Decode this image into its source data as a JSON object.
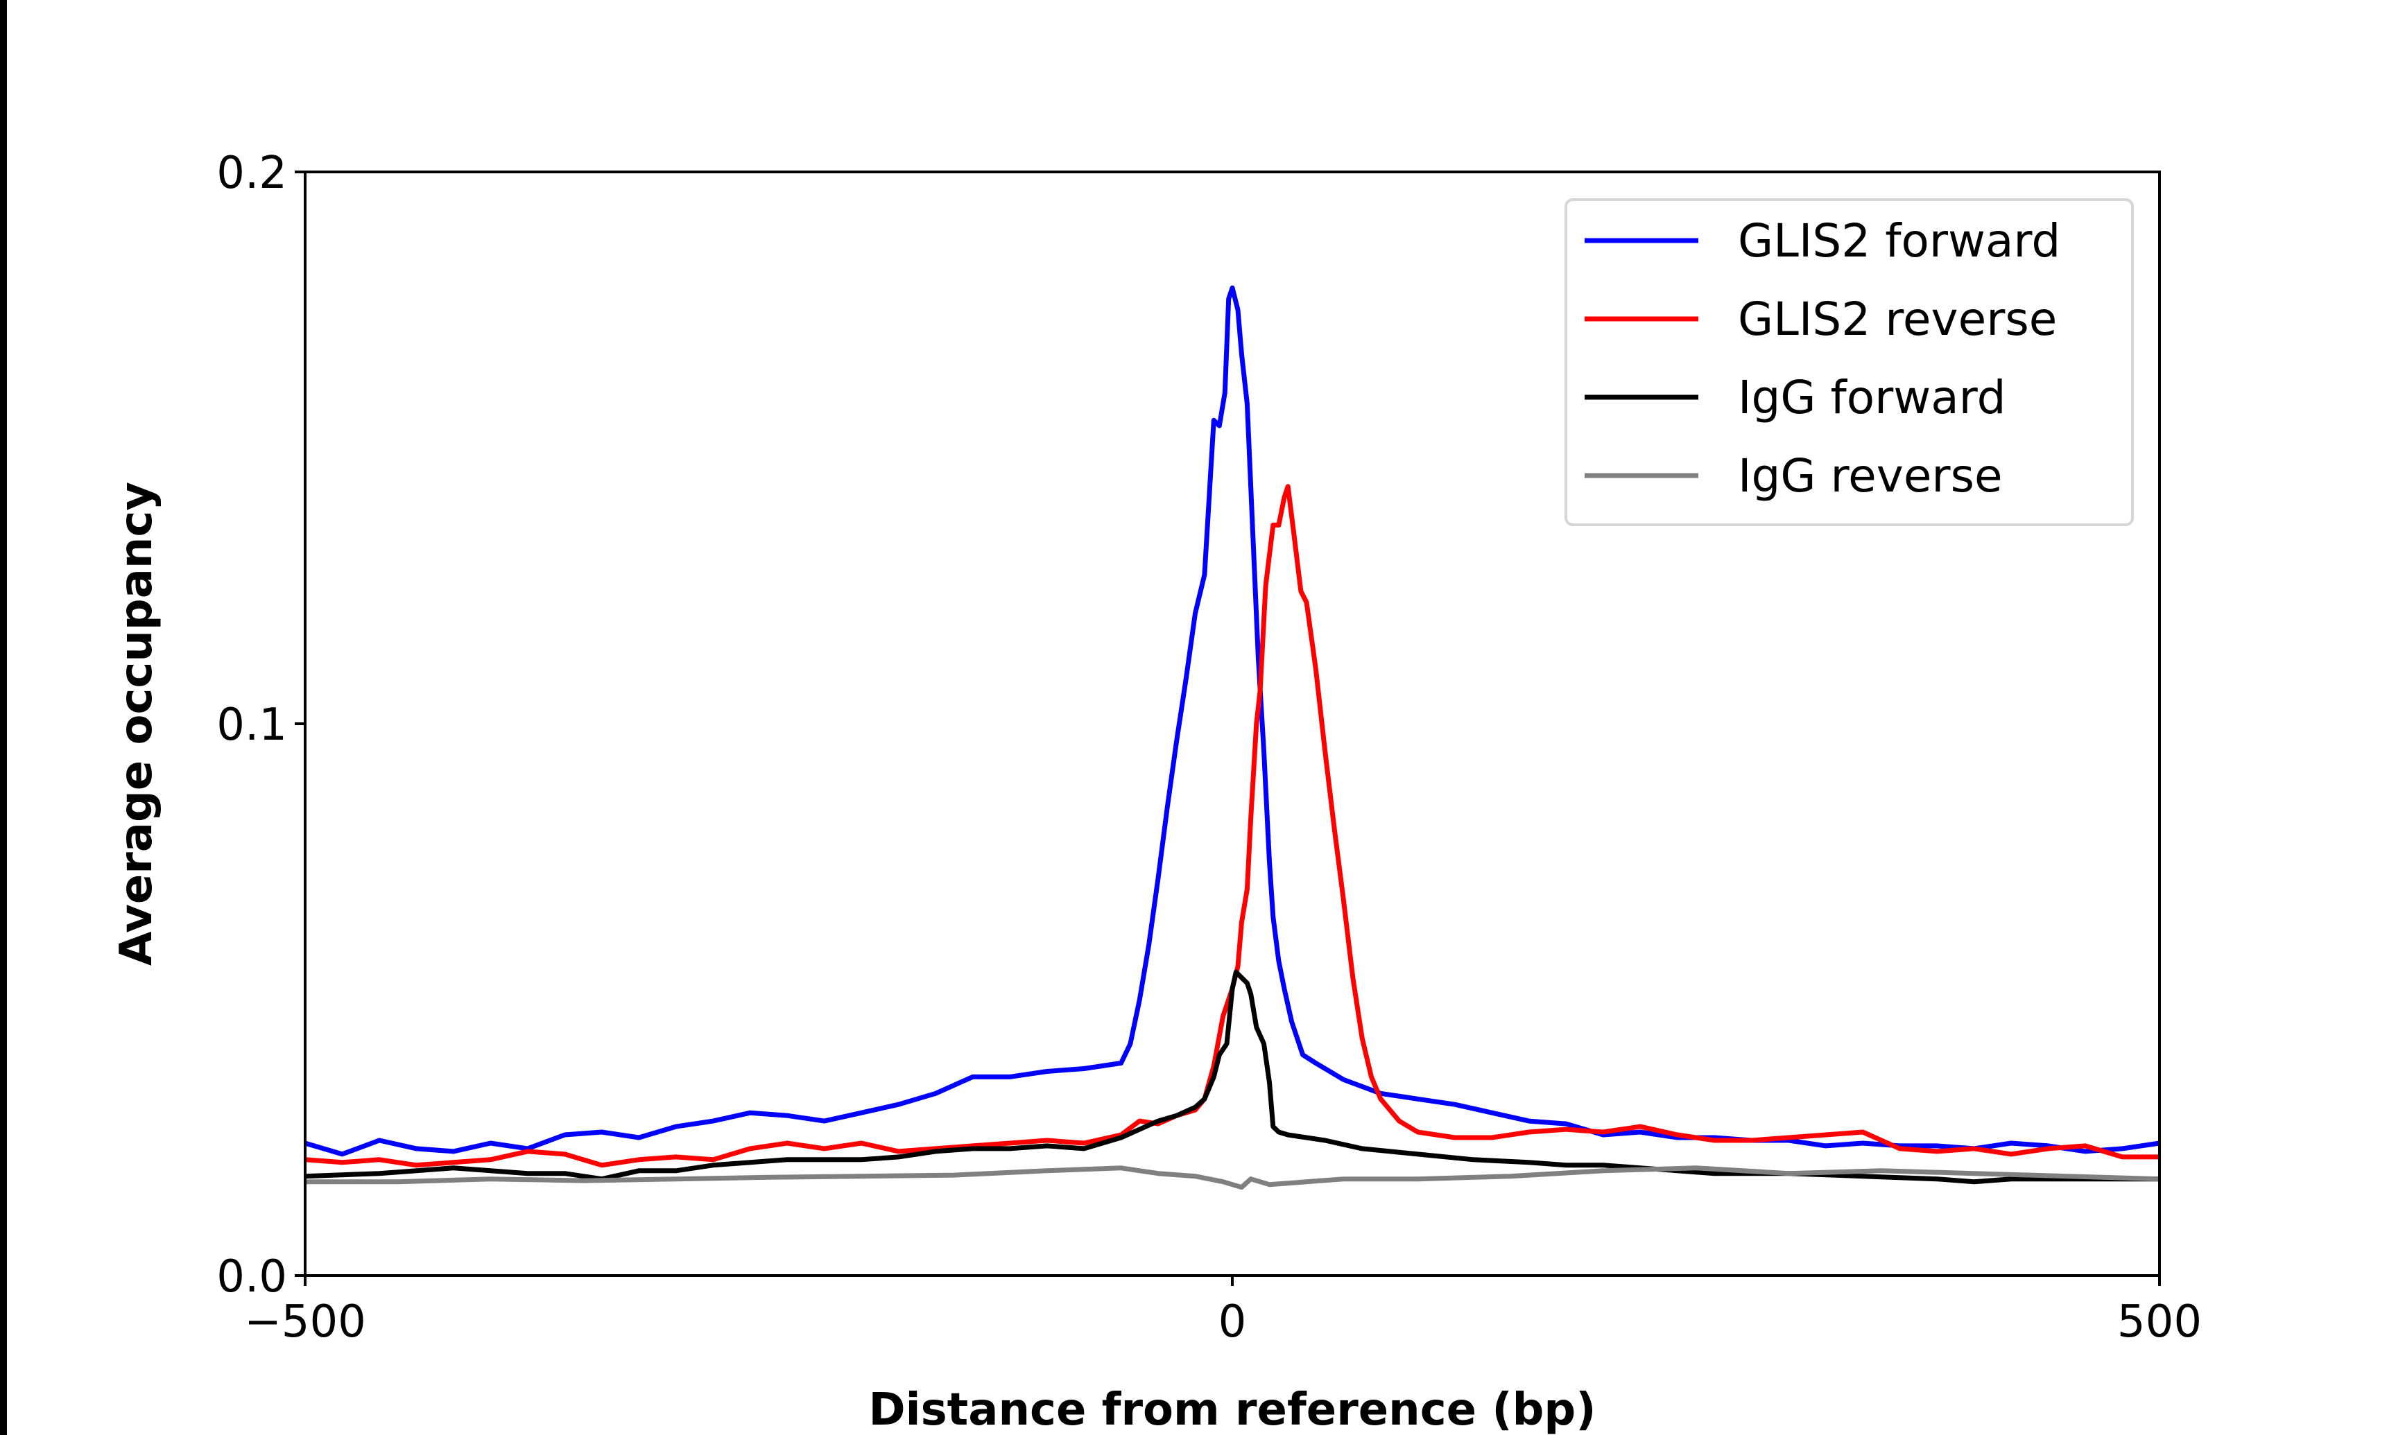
{
  "chart_data": {
    "type": "line",
    "title": "",
    "xlabel": "Distance from reference (bp)",
    "ylabel": "Average occupancy",
    "xlim": [
      -500,
      500
    ],
    "ylim": [
      0,
      0.2
    ],
    "xticks": [
      -500,
      0,
      500
    ],
    "xtick_labels": [
      "−500",
      "0",
      "500"
    ],
    "yticks": [
      0,
      0.1,
      0.2
    ],
    "ytick_labels": [
      "0.0",
      "0.1",
      "0.2"
    ],
    "grid": false,
    "legend_position": "top-right",
    "series": [
      {
        "name": "GLIS2 forward",
        "color": "#0000ff",
        "x": [
          -500,
          -480,
          -460,
          -440,
          -420,
          -400,
          -380,
          -360,
          -340,
          -320,
          -300,
          -280,
          -260,
          -240,
          -220,
          -200,
          -180,
          -160,
          -140,
          -120,
          -100,
          -80,
          -60,
          -55,
          -50,
          -45,
          -40,
          -35,
          -30,
          -25,
          -20,
          -15,
          -10,
          -7,
          -4,
          -2,
          0,
          3,
          5,
          8,
          11,
          14,
          17,
          20,
          22,
          25,
          28,
          32,
          38,
          45,
          60,
          80,
          100,
          120,
          140,
          160,
          180,
          200,
          220,
          240,
          260,
          280,
          300,
          320,
          340,
          360,
          380,
          400,
          420,
          440,
          460,
          480,
          500
        ],
        "y": [
          0.024,
          0.022,
          0.0245,
          0.023,
          0.0225,
          0.024,
          0.023,
          0.0255,
          0.026,
          0.025,
          0.027,
          0.028,
          0.0295,
          0.029,
          0.028,
          0.0295,
          0.031,
          0.033,
          0.036,
          0.036,
          0.037,
          0.0375,
          0.0385,
          0.042,
          0.05,
          0.06,
          0.072,
          0.085,
          0.097,
          0.108,
          0.12,
          0.127,
          0.155,
          0.154,
          0.16,
          0.177,
          0.179,
          0.175,
          0.167,
          0.158,
          0.135,
          0.112,
          0.095,
          0.075,
          0.065,
          0.057,
          0.052,
          0.046,
          0.04,
          0.0385,
          0.0355,
          0.033,
          0.032,
          0.031,
          0.0295,
          0.028,
          0.0275,
          0.0255,
          0.026,
          0.025,
          0.025,
          0.0245,
          0.0245,
          0.0235,
          0.024,
          0.0235,
          0.0235,
          0.023,
          0.024,
          0.0235,
          0.0225,
          0.023,
          0.024
        ]
      },
      {
        "name": "GLIS2 reverse",
        "color": "#ff0000",
        "x": [
          -500,
          -480,
          -460,
          -440,
          -420,
          -400,
          -380,
          -360,
          -340,
          -320,
          -300,
          -280,
          -260,
          -240,
          -220,
          -200,
          -180,
          -160,
          -140,
          -120,
          -100,
          -80,
          -60,
          -50,
          -40,
          -30,
          -20,
          -15,
          -10,
          -5,
          0,
          3,
          5,
          8,
          10,
          13,
          15,
          18,
          22,
          25,
          28,
          30,
          33,
          37,
          40,
          45,
          50,
          55,
          60,
          65,
          70,
          75,
          80,
          90,
          100,
          120,
          140,
          160,
          180,
          200,
          220,
          240,
          260,
          280,
          300,
          320,
          340,
          360,
          380,
          400,
          420,
          440,
          460,
          480,
          500
        ],
        "y": [
          0.021,
          0.0205,
          0.021,
          0.02,
          0.0205,
          0.021,
          0.0225,
          0.022,
          0.02,
          0.021,
          0.0215,
          0.021,
          0.023,
          0.024,
          0.023,
          0.024,
          0.0225,
          0.023,
          0.0235,
          0.024,
          0.0245,
          0.024,
          0.0255,
          0.028,
          0.0275,
          0.029,
          0.03,
          0.032,
          0.038,
          0.047,
          0.052,
          0.056,
          0.064,
          0.07,
          0.083,
          0.1,
          0.106,
          0.125,
          0.136,
          0.136,
          0.141,
          0.143,
          0.135,
          0.124,
          0.122,
          0.11,
          0.095,
          0.081,
          0.068,
          0.054,
          0.043,
          0.036,
          0.032,
          0.028,
          0.026,
          0.025,
          0.025,
          0.026,
          0.0265,
          0.026,
          0.027,
          0.0255,
          0.0245,
          0.0245,
          0.025,
          0.0255,
          0.026,
          0.023,
          0.0225,
          0.023,
          0.022,
          0.023,
          0.0235,
          0.0215,
          0.0215
        ]
      },
      {
        "name": "IgG forward",
        "color": "#000000",
        "x": [
          -500,
          -460,
          -420,
          -400,
          -380,
          -360,
          -340,
          -320,
          -300,
          -280,
          -260,
          -240,
          -220,
          -200,
          -180,
          -160,
          -140,
          -120,
          -100,
          -80,
          -60,
          -40,
          -30,
          -20,
          -15,
          -10,
          -7,
          -3,
          0,
          2,
          5,
          8,
          10,
          13,
          17,
          20,
          22,
          25,
          30,
          50,
          70,
          100,
          130,
          160,
          180,
          200,
          220,
          260,
          300,
          340,
          380,
          400,
          420,
          460,
          500
        ],
        "y": [
          0.018,
          0.0185,
          0.0195,
          0.019,
          0.0185,
          0.0185,
          0.0175,
          0.019,
          0.019,
          0.02,
          0.0205,
          0.021,
          0.021,
          0.021,
          0.0215,
          0.0225,
          0.023,
          0.023,
          0.0235,
          0.023,
          0.025,
          0.028,
          0.029,
          0.0305,
          0.032,
          0.036,
          0.04,
          0.042,
          0.052,
          0.055,
          0.054,
          0.053,
          0.051,
          0.045,
          0.042,
          0.035,
          0.027,
          0.026,
          0.0255,
          0.0245,
          0.023,
          0.022,
          0.021,
          0.0205,
          0.02,
          0.02,
          0.0195,
          0.0185,
          0.0185,
          0.018,
          0.0175,
          0.017,
          0.0175,
          0.0175,
          0.0175
        ]
      },
      {
        "name": "IgG reverse",
        "color": "#808080",
        "x": [
          -500,
          -450,
          -400,
          -350,
          -300,
          -250,
          -200,
          -150,
          -100,
          -60,
          -40,
          -20,
          -5,
          0,
          5,
          10,
          20,
          40,
          60,
          100,
          150,
          200,
          250,
          300,
          350,
          400,
          450,
          500
        ],
        "y": [
          0.017,
          0.017,
          0.0175,
          0.0172,
          0.0175,
          0.0178,
          0.018,
          0.0182,
          0.019,
          0.0195,
          0.0185,
          0.018,
          0.017,
          0.0165,
          0.016,
          0.0175,
          0.0165,
          0.017,
          0.0175,
          0.0175,
          0.018,
          0.019,
          0.0195,
          0.0185,
          0.019,
          0.0185,
          0.018,
          0.0175
        ]
      }
    ]
  }
}
